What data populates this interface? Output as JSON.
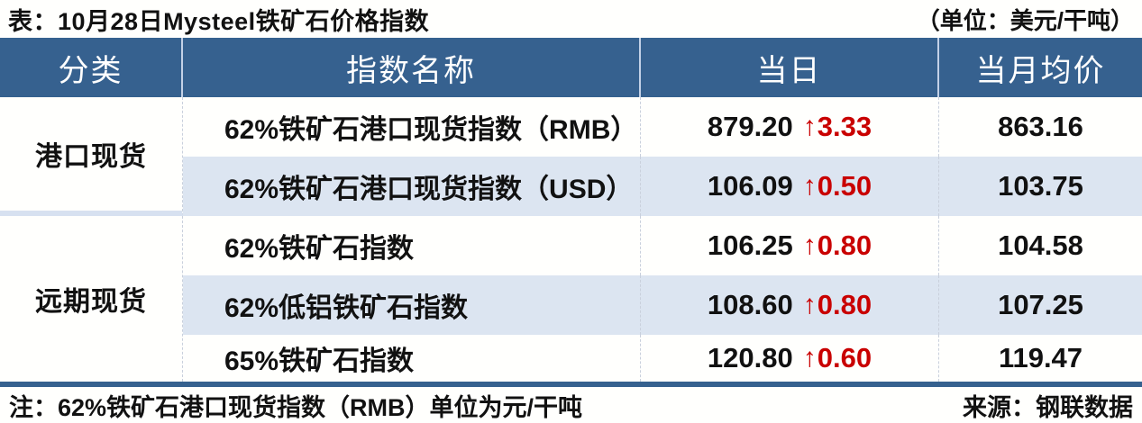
{
  "title": {
    "text": "表：10月28日Mysteel铁矿石价格指数",
    "unit": "（单位：美元/干吨）"
  },
  "table": {
    "columns": [
      "分类",
      "指数名称",
      "当日",
      "当月均价"
    ],
    "groups": [
      {
        "category": "港口现货",
        "rows": [
          {
            "name": "62%铁矿石港口现货指数（RMB）",
            "value": "879.20",
            "arrow": "↑",
            "change": "3.33",
            "monthly_avg": "863.16"
          },
          {
            "name": "62%铁矿石港口现货指数（USD）",
            "value": "106.09",
            "arrow": "↑",
            "change": "0.50",
            "monthly_avg": "103.75"
          }
        ]
      },
      {
        "category": "远期现货",
        "rows": [
          {
            "name": "62%铁矿石指数",
            "value": "106.25",
            "arrow": "↑",
            "change": "0.80",
            "monthly_avg": "104.58"
          },
          {
            "name": "62%低铝铁矿石指数",
            "value": "108.60",
            "arrow": "↑",
            "change": "0.80",
            "monthly_avg": "107.25"
          },
          {
            "name": "65%铁矿石指数",
            "value": "120.80",
            "arrow": "↑",
            "change": "0.60",
            "monthly_avg": "119.47"
          }
        ]
      }
    ]
  },
  "footer": {
    "note": "注：62%铁矿石港口现货指数（RMB）单位为元/干吨",
    "source": "来源：钢联数据"
  },
  "colors": {
    "header_bg": "#36618F",
    "row_alt_bg": "#DCE5F1",
    "group_band": "#D7E1F0",
    "header_divider": "#C3D1E7",
    "faint_divider": "#C9D0DC",
    "up_red": "#C90000"
  }
}
